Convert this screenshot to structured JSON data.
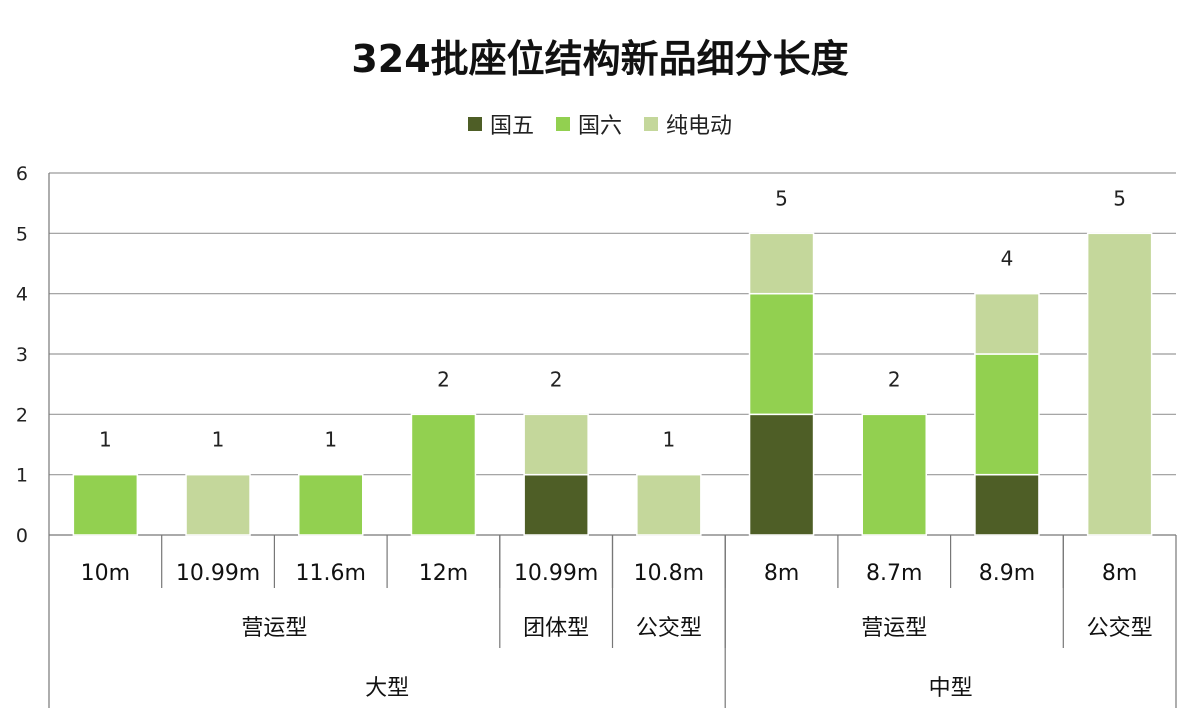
{
  "chart_data": {
    "type": "bar",
    "stacked": true,
    "title": "324批座位结构新品细分长度",
    "legend_position": "top",
    "grid": true,
    "ylim": [
      0,
      6
    ],
    "yticks": [
      "0",
      "1",
      "2",
      "3",
      "4",
      "5",
      "6"
    ],
    "categories": [
      "10m",
      "10.99m",
      "11.6m",
      "12m",
      "10.99m",
      "10.8m",
      "8m",
      "8.7m",
      "8.9m",
      "8m"
    ],
    "series": [
      {
        "name": "国五",
        "color": "#4e5e26",
        "values": [
          0,
          0,
          0,
          0,
          1,
          0,
          2,
          0,
          1,
          0
        ]
      },
      {
        "name": "国六",
        "color": "#92d050",
        "values": [
          1,
          0,
          1,
          2,
          0,
          0,
          2,
          2,
          2,
          0
        ]
      },
      {
        "name": "纯电动",
        "color": "#c4d79b",
        "values": [
          0,
          1,
          0,
          0,
          1,
          1,
          1,
          0,
          1,
          5
        ]
      }
    ],
    "totals": [
      "1",
      "1",
      "1",
      "2",
      "2",
      "1",
      "5",
      "2",
      "4",
      "5"
    ],
    "subgroups": [
      {
        "label": "营运型",
        "start": 0,
        "end": 3
      },
      {
        "label": "团体型",
        "start": 4,
        "end": 4
      },
      {
        "label": "公交型",
        "start": 5,
        "end": 5
      },
      {
        "label": "营运型",
        "start": 6,
        "end": 8
      },
      {
        "label": "公交型",
        "start": 9,
        "end": 9
      }
    ],
    "groups": [
      {
        "label": "大型",
        "start": 0,
        "end": 5
      },
      {
        "label": "中型",
        "start": 6,
        "end": 9
      }
    ]
  }
}
